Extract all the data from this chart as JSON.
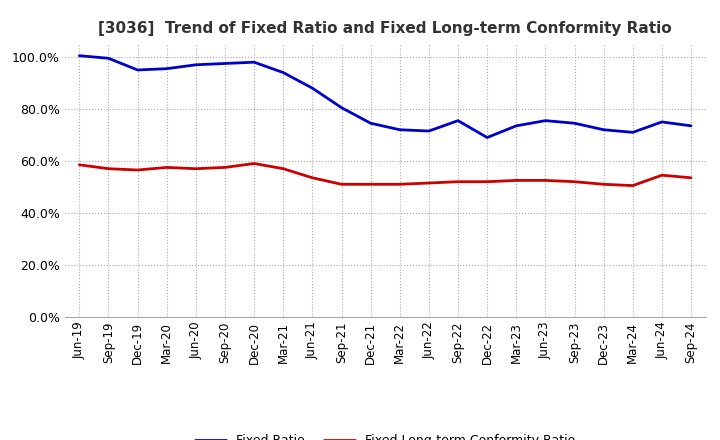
{
  "title": "[3036]  Trend of Fixed Ratio and Fixed Long-term Conformity Ratio",
  "x_labels": [
    "Jun-19",
    "Sep-19",
    "Dec-19",
    "Mar-20",
    "Jun-20",
    "Sep-20",
    "Dec-20",
    "Mar-21",
    "Jun-21",
    "Sep-21",
    "Dec-21",
    "Mar-22",
    "Jun-22",
    "Sep-22",
    "Dec-22",
    "Mar-23",
    "Jun-23",
    "Sep-23",
    "Dec-23",
    "Mar-24",
    "Jun-24",
    "Sep-24"
  ],
  "fixed_ratio": [
    100.5,
    99.5,
    95.0,
    95.5,
    97.0,
    97.5,
    98.0,
    94.0,
    88.0,
    80.5,
    74.5,
    72.0,
    71.5,
    75.5,
    69.0,
    73.5,
    75.5,
    74.5,
    72.0,
    71.0,
    75.0,
    73.5
  ],
  "fixed_lt_ratio": [
    58.5,
    57.0,
    56.5,
    57.5,
    57.0,
    57.5,
    59.0,
    57.0,
    53.5,
    51.0,
    51.0,
    51.0,
    51.5,
    52.0,
    52.0,
    52.5,
    52.5,
    52.0,
    51.0,
    50.5,
    54.5,
    53.5
  ],
  "fixed_ratio_color": "#0000cc",
  "fixed_lt_ratio_color": "#cc0000",
  "ylim": [
    0,
    105
  ],
  "yticks": [
    0,
    20,
    40,
    60,
    80,
    100
  ],
  "background_color": "#ffffff",
  "plot_bg_color": "#ffffff",
  "grid_color": "#aaaaaa",
  "line_width": 2.0,
  "title_fontsize": 11,
  "tick_fontsize": 8.5,
  "ytick_fontsize": 9
}
